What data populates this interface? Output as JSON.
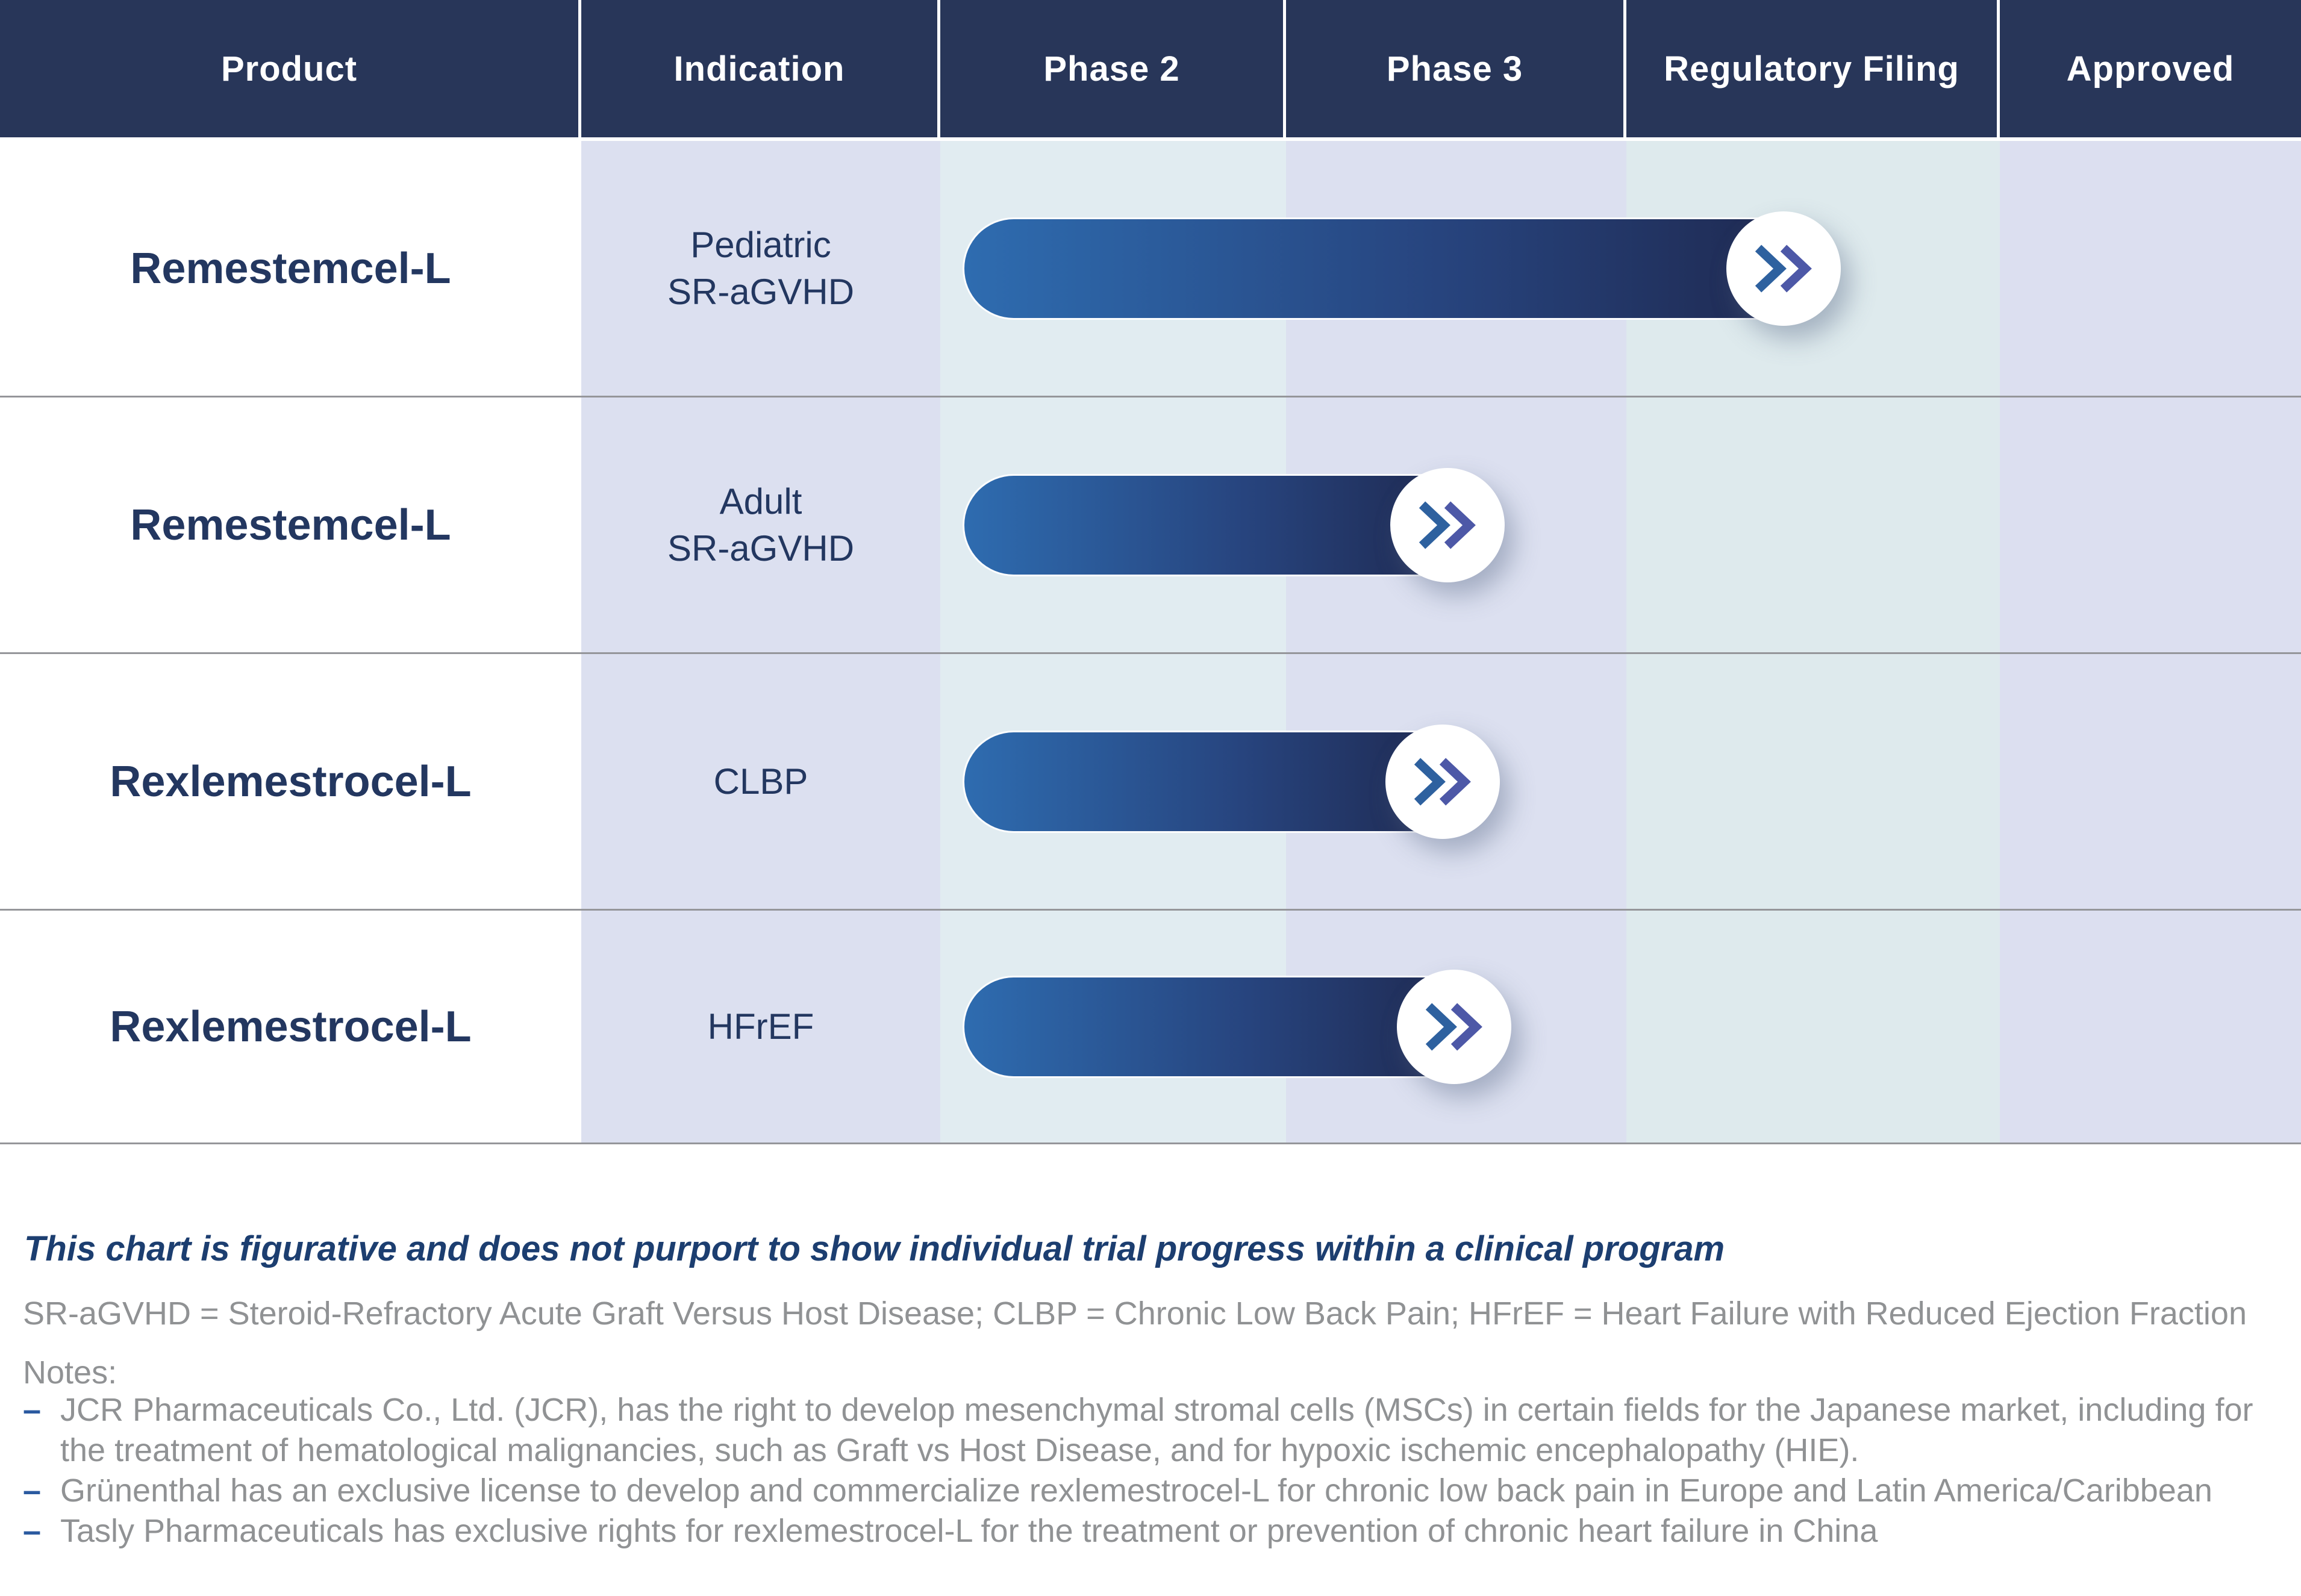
{
  "table": {
    "header": {
      "columns": [
        "Product",
        "Indication",
        "Phase 2",
        "Phase 3",
        "Regulatory Filing",
        "Approved"
      ]
    },
    "rows": [
      {
        "product": "Remestemcel-L",
        "indication": "Pediatric\nSR-aGVHD"
      },
      {
        "product": "Remestemcel-L",
        "indication": "Adult\nSR-aGVHD"
      },
      {
        "product": "Rexlemestrocel-L",
        "indication": "CLBP"
      },
      {
        "product": "Rexlemestrocel-L",
        "indication": "HFrEF"
      }
    ]
  },
  "chart_data": {
    "type": "bar",
    "orientation": "horizontal-pipeline",
    "stages": [
      "Phase 2",
      "Phase 3",
      "Regulatory Filing",
      "Approved"
    ],
    "rows": [
      {
        "product": "Remestemcel-L",
        "indication": "Pediatric SR-aGVHD",
        "stage_reached": "Regulatory Filing (in progress)",
        "bar_start_pct": 41.9,
        "bar_end_pct": 77.5
      },
      {
        "product": "Remestemcel-L",
        "indication": "Adult SR-aGVHD",
        "stage_reached": "Phase 3 (in progress)",
        "bar_start_pct": 41.9,
        "bar_end_pct": 62.9
      },
      {
        "product": "Rexlemestrocel-L",
        "indication": "CLBP",
        "stage_reached": "Phase 3 (in progress)",
        "bar_start_pct": 41.9,
        "bar_end_pct": 62.7
      },
      {
        "product": "Rexlemestrocel-L",
        "indication": "HFrEF",
        "stage_reached": "Phase 3 (in progress)",
        "bar_start_pct": 41.9,
        "bar_end_pct": 63.2
      }
    ],
    "legend": "none",
    "grid": "off"
  },
  "footer": {
    "disclaimer": "This chart is figurative and does not purport to show individual trial progress within a clinical program",
    "abbreviations": "SR-aGVHD = Steroid-Refractory Acute Graft Versus Host Disease; CLBP = Chronic Low Back Pain; HFrEF = Heart Failure with Reduced Ejection Fraction",
    "notes_label": "Notes:",
    "bullet_glyph": "–",
    "notes": [
      "JCR Pharmaceuticals Co., Ltd. (JCR), has the right to develop mesenchymal stromal cells (MSCs) in certain fields for the Japanese market, including for the treatment of hematological malignancies, such as Graft vs Host Disease, and for hypoxic ischemic encephalopathy (HIE).",
      "Grünenthal has an exclusive license to develop and commercialize rexlemestrocel-L for chronic low back pain in Europe and Latin America/Caribbean",
      "Tasly Pharmaceuticals has exclusive rights for rexlemestrocel-L for the treatment or prevention of chronic heart failure in China"
    ]
  },
  "colors": {
    "header_bg": "#283659",
    "header_text": "#ffffff",
    "product_text": "#233760",
    "indication_text": "#233760",
    "col_tint_lavender": "#dce0f0",
    "col_tint_blue_green": "#e1ecf1",
    "bar_gradient_start": "#2e6cb0",
    "bar_gradient_end": "#1f2a52",
    "milestone_circle": "#ffffff",
    "chevron_primary": "#2e619f",
    "chevron_secondary": "#4d58a7",
    "row_divider": "#95969a",
    "disclaimer_text": "#1c3e70",
    "note_text": "#909294",
    "bullet_dash": "#2b5aa0"
  }
}
